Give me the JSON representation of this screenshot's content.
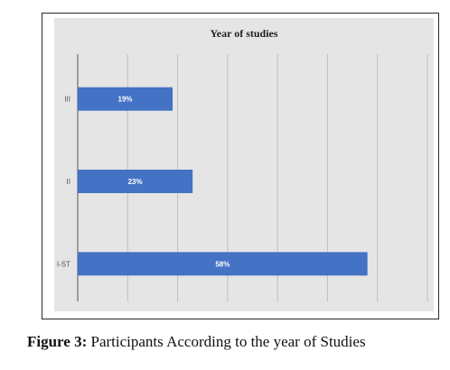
{
  "chart_data": {
    "type": "bar",
    "orientation": "horizontal",
    "title": "Year of studies",
    "categories": [
      "III",
      "II",
      "I-ST"
    ],
    "values": [
      19,
      23,
      58
    ],
    "data_labels": [
      "19%",
      "23%",
      "58%"
    ],
    "xlim": [
      0,
      70
    ],
    "grid": "vertical",
    "bar_color": "#4472c4",
    "background_color": "#e5e5e5"
  },
  "caption": {
    "label": "Figure 3:",
    "text": " Participants According to the year of Studies"
  }
}
